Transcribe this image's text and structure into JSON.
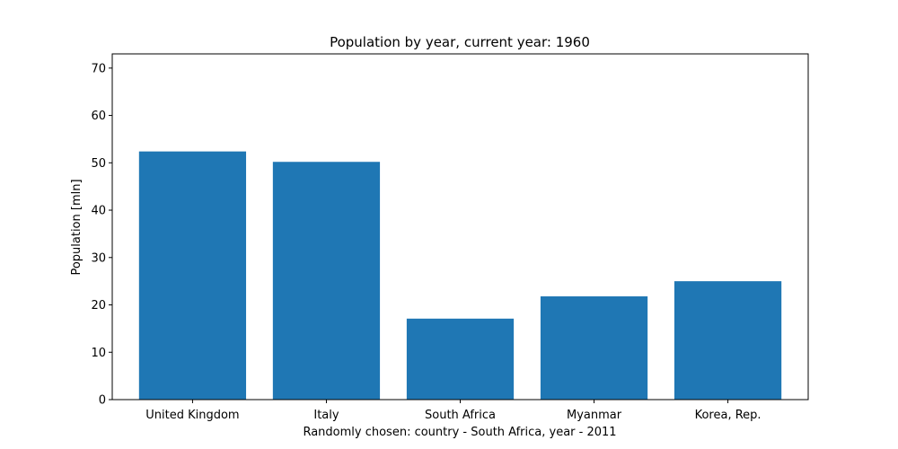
{
  "chart_data": {
    "type": "bar",
    "title": "Population by year, current year: 1960",
    "xlabel": "Randomly chosen: country - South Africa, year - 2011",
    "ylabel": "Population [mln]",
    "categories": [
      "United Kingdom",
      "Italy",
      "South Africa",
      "Myanmar",
      "Korea, Rep."
    ],
    "values": [
      52.4,
      50.2,
      17.1,
      21.8,
      25.0
    ],
    "ylim": [
      0,
      73
    ],
    "yticks": [
      0,
      10,
      20,
      30,
      40,
      50,
      60,
      70
    ],
    "bar_color": "#1f77b4",
    "grid": false,
    "legend": "none"
  }
}
